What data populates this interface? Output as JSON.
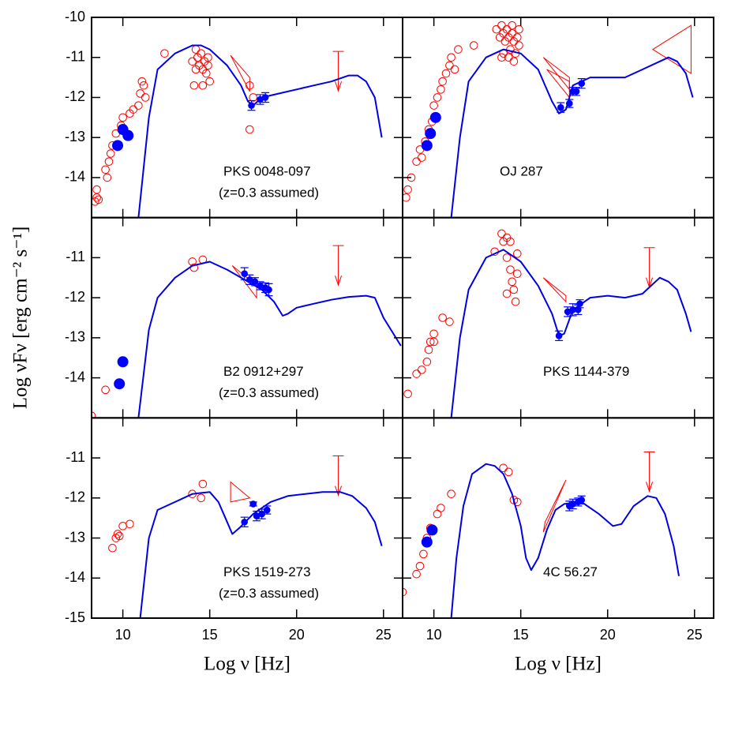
{
  "chart_data": [
    {
      "type": "sed",
      "labels": [
        "PKS 0048-097",
        "(z=0.3 assumed)"
      ],
      "xlim": [
        8.2,
        26.1
      ],
      "ylim": [
        -15,
        -10
      ],
      "xticks": [
        10,
        15,
        20,
        25
      ],
      "yticks": [
        -14,
        -13,
        -12,
        -11,
        -10
      ],
      "xtick_labels": false,
      "ytick_labels": true,
      "model": {
        "color": "#0000e6",
        "x": [
          10.9,
          11.5,
          12,
          13,
          14,
          14.5,
          15,
          16,
          16.8,
          17.2,
          17.5,
          18,
          19,
          20,
          21,
          22,
          23,
          23.5,
          24,
          24.5,
          24.9
        ],
        "y": [
          -15,
          -12.5,
          -11.3,
          -10.9,
          -10.7,
          -10.7,
          -10.8,
          -11.2,
          -11.7,
          -12.1,
          -12.2,
          -12.0,
          -11.9,
          -11.8,
          -11.7,
          -11.6,
          -11.45,
          -11.45,
          -11.6,
          -12.0,
          -13.0
        ]
      },
      "archival": {
        "color": "#ff0000",
        "x": [
          8.4,
          8.5,
          8.5,
          8.6,
          9.0,
          9.1,
          9.2,
          9.3,
          9.4,
          9.6,
          9.9,
          10.0,
          10.4,
          10.6,
          10.9,
          11.0,
          11.1,
          11.2,
          11.3,
          12.4,
          14.0,
          14.1,
          14.2,
          14.3,
          14.4,
          14.5,
          14.6,
          14.7,
          14.8,
          14.9,
          15.0,
          14.2,
          14.6,
          14.9,
          17.3,
          17.5,
          17.3
        ],
        "y": [
          -14.6,
          -14.5,
          -14.3,
          -14.55,
          -13.8,
          -14.0,
          -13.6,
          -13.4,
          -13.2,
          -12.9,
          -12.7,
          -12.5,
          -12.4,
          -12.3,
          -12.2,
          -11.9,
          -11.6,
          -11.7,
          -12.0,
          -10.9,
          -11.1,
          -11.7,
          -10.8,
          -11.0,
          -11.2,
          -10.9,
          -11.3,
          -11.1,
          -11.4,
          -11.0,
          -11.6,
          -11.3,
          -11.7,
          -11.2,
          -11.7,
          -12.0,
          -12.8
        ]
      },
      "radio": {
        "color": "#0000ff",
        "x": [
          9.7,
          10.0,
          10.3
        ],
        "y": [
          -13.2,
          -12.8,
          -12.95
        ]
      },
      "simultaneous": {
        "color": "#0000ff",
        "x": [
          17.4,
          17.9,
          18.2
        ],
        "y": [
          -12.2,
          -12.05,
          -12.0
        ],
        "err": [
          0.12,
          0.12,
          0.12
        ]
      },
      "butterflies": [
        {
          "x": [
            16.2,
            17.3,
            17.3
          ],
          "y": [
            -10.95,
            -11.5,
            -11.85
          ]
        }
      ],
      "upper_limit": {
        "x": 22.4,
        "y": -10.85
      }
    },
    {
      "type": "sed",
      "labels": [
        "OJ 287"
      ],
      "xlim": [
        8.2,
        26.1
      ],
      "ylim": [
        -15,
        -10
      ],
      "xticks": [
        10,
        15,
        20,
        25
      ],
      "yticks": [
        -14,
        -13,
        -12,
        -11,
        -10
      ],
      "xtick_labels": false,
      "ytick_labels": false,
      "model": {
        "color": "#0000e6",
        "x": [
          11,
          11.5,
          12,
          13,
          14,
          15,
          16,
          16.8,
          17.2,
          17.6,
          18,
          19,
          20,
          21,
          22,
          23,
          23.5,
          24,
          24.5,
          24.9
        ],
        "y": [
          -15,
          -13,
          -11.6,
          -11.0,
          -10.8,
          -10.9,
          -11.3,
          -12.1,
          -12.4,
          -12.3,
          -11.7,
          -11.5,
          -11.5,
          -11.5,
          -11.3,
          -11.1,
          -11.0,
          -11.1,
          -11.4,
          -12.0
        ]
      },
      "archival": {
        "color": "#ff0000",
        "x": [
          8.4,
          8.5,
          8.7,
          9.0,
          9.2,
          9.3,
          9.5,
          9.7,
          9.9,
          10.0,
          10.2,
          10.4,
          10.5,
          10.7,
          10.9,
          11.0,
          11.2,
          11.4,
          12.3,
          13.6,
          13.8,
          13.9,
          14.0,
          14.1,
          14.2,
          14.3,
          14.4,
          14.5,
          14.6,
          14.7,
          14.8,
          14.9,
          14.0,
          14.3,
          14.6,
          14.9,
          13.9,
          14.5
        ],
        "y": [
          -14.5,
          -14.3,
          -14.0,
          -13.6,
          -13.3,
          -13.5,
          -13.1,
          -12.8,
          -12.6,
          -12.2,
          -12.0,
          -11.8,
          -11.6,
          -11.4,
          -11.2,
          -11.0,
          -11.3,
          -10.8,
          -10.7,
          -10.3,
          -10.5,
          -10.2,
          -10.4,
          -10.6,
          -10.3,
          -10.5,
          -10.8,
          -10.4,
          -10.6,
          -10.9,
          -10.5,
          -10.7,
          -10.9,
          -11.0,
          -11.1,
          -10.3,
          -11.0,
          -10.2
        ]
      },
      "radio": {
        "color": "#0000ff",
        "x": [
          9.6,
          9.8,
          10.1
        ],
        "y": [
          -13.2,
          -12.9,
          -12.5
        ]
      },
      "simultaneous": {
        "color": "#0000ff",
        "x": [
          17.3,
          17.8,
          18.0,
          18.2,
          18.5
        ],
        "y": [
          -12.25,
          -12.15,
          -11.85,
          -11.85,
          -11.65
        ],
        "err": [
          0.12,
          0.1,
          0.1,
          0.1,
          0.12
        ]
      },
      "butterflies": [
        {
          "x": [
            16.3,
            17.8,
            17.8
          ],
          "y": [
            -11.0,
            -11.5,
            -11.8
          ]
        },
        {
          "x": [
            16.5,
            17.8,
            17.8
          ],
          "y": [
            -11.3,
            -11.6,
            -12.0
          ]
        },
        {
          "x": [
            22.6,
            24.8,
            24.8
          ],
          "y": [
            -10.8,
            -10.2,
            -11.4
          ]
        }
      ]
    },
    {
      "type": "sed",
      "labels": [
        "B2 0912+297",
        "(z=0.3 assumed)"
      ],
      "ylabel": "Log νFν [erg cm⁻² s⁻¹]",
      "xlim": [
        8.2,
        26.1
      ],
      "ylim": [
        -15,
        -10
      ],
      "xticks": [
        10,
        15,
        20,
        25
      ],
      "yticks": [
        -14,
        -13,
        -12,
        -11
      ],
      "xtick_labels": false,
      "ytick_labels": true,
      "model": {
        "color": "#0000e6",
        "x": [
          10.9,
          11.5,
          12,
          13,
          14,
          15,
          16,
          17,
          18,
          18.7,
          19.2,
          19.5,
          20,
          21,
          22,
          23,
          24,
          24.5,
          25,
          26.0
        ],
        "y": [
          -15,
          -12.8,
          -12.0,
          -11.5,
          -11.2,
          -11.1,
          -11.3,
          -11.55,
          -11.8,
          -12.1,
          -12.45,
          -12.4,
          -12.25,
          -12.15,
          -12.05,
          -11.98,
          -11.95,
          -12.0,
          -12.5,
          -13.2
        ]
      },
      "archival": {
        "color": "#ff0000",
        "x": [
          8.2,
          9.0,
          14.0,
          14.1,
          14.6
        ],
        "y": [
          -14.95,
          -14.3,
          -11.1,
          -11.25,
          -11.05
        ]
      },
      "radio": {
        "color": "#0000ff",
        "x": [
          9.8,
          10.0
        ],
        "y": [
          -14.15,
          -13.6
        ]
      },
      "simultaneous": {
        "color": "#0000ff",
        "x": [
          17.0,
          17.3,
          17.6,
          17.9,
          18.2,
          18.4
        ],
        "y": [
          -11.4,
          -11.55,
          -11.6,
          -11.7,
          -11.75,
          -11.8
        ],
        "err": [
          0.15,
          0.12,
          0.1,
          0.1,
          0.12,
          0.15
        ]
      },
      "butterflies": [
        {
          "x": [
            16.3,
            17.7,
            17.7
          ],
          "y": [
            -11.2,
            -11.7,
            -12.0
          ]
        }
      ],
      "upper_limit": {
        "x": 22.4,
        "y": -10.7
      }
    },
    {
      "type": "sed",
      "labels": [
        "PKS 1144-379"
      ],
      "xlim": [
        8.2,
        26.1
      ],
      "ylim": [
        -15,
        -10
      ],
      "xticks": [
        10,
        15,
        20,
        25
      ],
      "yticks": [
        -14,
        -13,
        -12,
        -11
      ],
      "xtick_labels": false,
      "ytick_labels": false,
      "model": {
        "color": "#0000e6",
        "x": [
          11,
          11.5,
          12,
          13,
          14,
          15,
          16,
          16.8,
          17.2,
          17.5,
          18,
          19,
          20,
          21,
          22,
          22.5,
          23,
          23.5,
          24,
          24.5,
          24.8
        ],
        "y": [
          -15,
          -13,
          -11.8,
          -11.0,
          -10.8,
          -11.1,
          -11.7,
          -12.4,
          -12.95,
          -12.9,
          -12.3,
          -12.0,
          -11.95,
          -12.0,
          -11.9,
          -11.7,
          -11.5,
          -11.6,
          -11.8,
          -12.4,
          -12.85
        ]
      },
      "archival": {
        "color": "#ff0000",
        "x": [
          8.5,
          9.0,
          9.3,
          9.6,
          9.7,
          9.8,
          10.0,
          10.0,
          10.5,
          10.9,
          13.5,
          13.9,
          14.0,
          14.2,
          14.4,
          14.2,
          14.4,
          14.5,
          14.6,
          14.7,
          14.8,
          14.8,
          14.2
        ],
        "y": [
          -14.4,
          -13.9,
          -13.8,
          -13.6,
          -13.3,
          -13.1,
          -12.9,
          -13.1,
          -12.5,
          -12.6,
          -10.85,
          -10.4,
          -10.6,
          -10.5,
          -10.6,
          -11.0,
          -11.3,
          -11.6,
          -11.8,
          -12.1,
          -11.4,
          -10.9,
          -11.9
        ]
      },
      "simultaneous": {
        "color": "#0000ff",
        "x": [
          17.2,
          17.7,
          18.0,
          18.3,
          18.4
        ],
        "y": [
          -12.95,
          -12.35,
          -12.3,
          -12.3,
          -12.15
        ],
        "err": [
          0.12,
          0.12,
          0.15,
          0.12,
          0.1
        ]
      },
      "butterflies": [
        {
          "x": [
            16.3,
            17.6,
            17.6
          ],
          "y": [
            -11.5,
            -11.95,
            -12.1
          ]
        }
      ],
      "upper_limit": {
        "x": 22.4,
        "y": -10.75
      }
    },
    {
      "type": "sed",
      "labels": [
        "PKS 1519-273",
        "(z=0.3 assumed)"
      ],
      "xlabel": "Log ν [Hz]",
      "xlim": [
        8.2,
        26.1
      ],
      "ylim": [
        -15,
        -10
      ],
      "xticks": [
        10,
        15,
        20,
        25
      ],
      "yticks": [
        -15,
        -14,
        -13,
        -12,
        -11
      ],
      "xtick_labels": true,
      "ytick_labels": true,
      "model": {
        "color": "#0000e6",
        "x": [
          11,
          11.5,
          12,
          13,
          14,
          15,
          15.5,
          16,
          16.3,
          16.7,
          17.5,
          18.5,
          19.5,
          20.5,
          21.5,
          22.5,
          23.2,
          24,
          24.5,
          24.9
        ],
        "y": [
          -15,
          -13,
          -12.3,
          -12.1,
          -11.9,
          -11.85,
          -12.1,
          -12.6,
          -12.9,
          -12.75,
          -12.4,
          -12.1,
          -11.95,
          -11.9,
          -11.85,
          -11.85,
          -11.95,
          -12.25,
          -12.6,
          -13.2
        ]
      },
      "archival": {
        "color": "#ff0000",
        "x": [
          9.4,
          9.6,
          9.7,
          9.8,
          10.0,
          10.4,
          14.0,
          14.5,
          14.6
        ],
        "y": [
          -13.25,
          -13.0,
          -12.9,
          -12.95,
          -12.7,
          -12.65,
          -11.9,
          -12.0,
          -11.65
        ]
      },
      "simultaneous": {
        "color": "#0000ff",
        "x": [
          17.0,
          17.5,
          17.7,
          18.0,
          18.3
        ],
        "y": [
          -12.6,
          -12.15,
          -12.45,
          -12.4,
          -12.3
        ],
        "err": [
          0.12,
          0.05,
          0.12,
          0.12,
          0.1
        ]
      },
      "butterflies": [
        {
          "x": [
            16.2,
            16.2,
            17.3
          ],
          "y": [
            -11.6,
            -12.1,
            -12.0
          ]
        }
      ],
      "upper_limit": {
        "x": 22.4,
        "y": -10.95
      }
    },
    {
      "type": "sed",
      "labels": [
        "4C 56.27"
      ],
      "xlabel": "Log ν [Hz]",
      "xlim": [
        8.2,
        26.1
      ],
      "ylim": [
        -15,
        -10
      ],
      "xticks": [
        10,
        15,
        20,
        25
      ],
      "yticks": [
        -15,
        -14,
        -13,
        -12,
        -11
      ],
      "xtick_labels": true,
      "ytick_labels": false,
      "model": {
        "color": "#0000e6",
        "x": [
          11,
          11.3,
          11.7,
          12.2,
          13,
          13.5,
          14,
          14.5,
          15,
          15.3,
          15.6,
          16,
          16.5,
          17,
          17.5,
          18.5,
          19.5,
          20.3,
          20.8,
          21.5,
          22.3,
          22.8,
          23.3,
          23.8,
          24.1
        ],
        "y": [
          -15,
          -13.5,
          -12.2,
          -11.4,
          -11.15,
          -11.2,
          -11.4,
          -11.9,
          -12.7,
          -13.5,
          -13.8,
          -13.5,
          -12.8,
          -12.3,
          -12.15,
          -12.1,
          -12.4,
          -12.7,
          -12.65,
          -12.2,
          -11.95,
          -12.0,
          -12.4,
          -13.2,
          -13.95
        ]
      },
      "archival": {
        "color": "#ff0000",
        "x": [
          8.2,
          9.0,
          9.2,
          9.4,
          9.6,
          9.8,
          10.2,
          10.4,
          11.0,
          14.0,
          14.3,
          14.6,
          14.8
        ],
        "y": [
          -14.35,
          -13.9,
          -13.7,
          -13.4,
          -13.0,
          -12.75,
          -12.4,
          -12.25,
          -11.9,
          -11.25,
          -11.35,
          -12.05,
          -12.1
        ]
      },
      "radio": {
        "color": "#0000ff",
        "x": [
          9.6,
          9.9
        ],
        "y": [
          -13.1,
          -12.8
        ]
      },
      "simultaneous": {
        "color": "#0000ff",
        "x": [
          17.8,
          18.0,
          18.3,
          18.5
        ],
        "y": [
          -12.2,
          -12.15,
          -12.1,
          -12.05
        ],
        "err": [
          0.12,
          0.12,
          0.1,
          0.1
        ]
      },
      "butterflies": [
        {
          "x": [
            16.3,
            17.6,
            16.4
          ],
          "y": [
            -12.85,
            -11.55,
            -12.6
          ]
        }
      ],
      "upper_limit": {
        "x": 22.4,
        "y": -10.85
      }
    }
  ]
}
